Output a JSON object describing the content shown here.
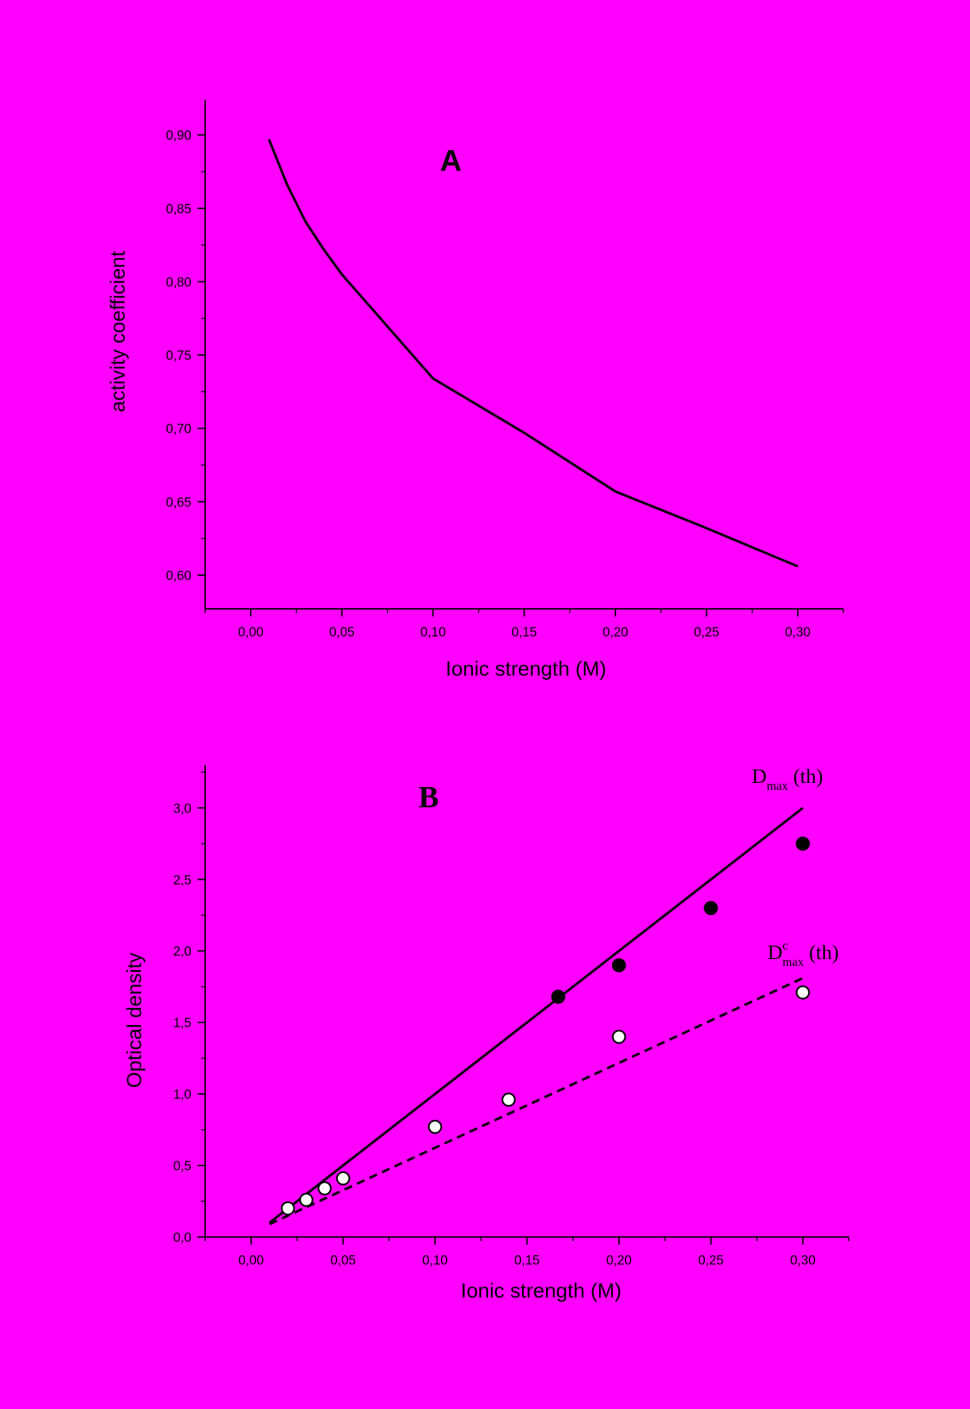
{
  "chart_data": [
    {
      "panel": "A",
      "type": "line",
      "panel_label": "A",
      "xlabel": "Ionic strength (M)",
      "ylabel": "activity  coefficient",
      "xlim": [
        -0.025,
        0.325
      ],
      "ylim": [
        0.577,
        0.924
      ],
      "xticks": [
        "0,00",
        "0,05",
        "0,10",
        "0,15",
        "0,20",
        "0,25",
        "0,30"
      ],
      "yticks": [
        "0,60",
        "0,65",
        "0,70",
        "0,75",
        "0,80",
        "0,85",
        "0,90"
      ],
      "grid": false,
      "series": [
        {
          "style": "solid",
          "color": "#000000",
          "x": [
            0.01,
            0.02,
            0.03,
            0.04,
            0.05,
            0.1,
            0.15,
            0.2,
            0.25,
            0.3
          ],
          "y": [
            0.897,
            0.866,
            0.841,
            0.822,
            0.805,
            0.734,
            0.697,
            0.657,
            0.632,
            0.606
          ]
        }
      ]
    },
    {
      "panel": "B",
      "type": "scatter",
      "panel_label": "B",
      "xlabel": "Ionic strength (M)",
      "ylabel": "Optical  density",
      "xlim": [
        -0.025,
        0.325
      ],
      "ylim": [
        0.0,
        3.3
      ],
      "xticks": [
        "0,00",
        "0,05",
        "0,10",
        "0,15",
        "0,20",
        "0,25",
        "0,30"
      ],
      "yticks": [
        "0,0",
        "0,5",
        "1,0",
        "1,5",
        "2,0",
        "2,5",
        "3,0"
      ],
      "grid": false,
      "series": [
        {
          "label_main": "D",
          "label_sup": "",
          "label_sub": "max",
          "label_suffix": " (th)",
          "style": "solid-line",
          "color": "#000000",
          "x": [
            0.01,
            0.3
          ],
          "y": [
            0.1,
            3.0
          ]
        },
        {
          "label_main": "D",
          "label_sup": "c",
          "label_sub": "max",
          "label_suffix": " (th)",
          "style": "dashed-line",
          "color": "#000000",
          "x": [
            0.01,
            0.3
          ],
          "y": [
            0.09,
            1.81
          ]
        },
        {
          "style": "filled-circles",
          "color": "#000000",
          "x": [
            0.167,
            0.2,
            0.25,
            0.3
          ],
          "y": [
            1.68,
            1.9,
            2.3,
            2.75
          ]
        },
        {
          "style": "open-circles",
          "color": "#ffffff",
          "x": [
            0.02,
            0.03,
            0.04,
            0.05,
            0.1,
            0.14,
            0.2,
            0.3
          ],
          "y": [
            0.2,
            0.26,
            0.34,
            0.41,
            0.77,
            0.96,
            1.4,
            1.71
          ]
        }
      ]
    }
  ]
}
